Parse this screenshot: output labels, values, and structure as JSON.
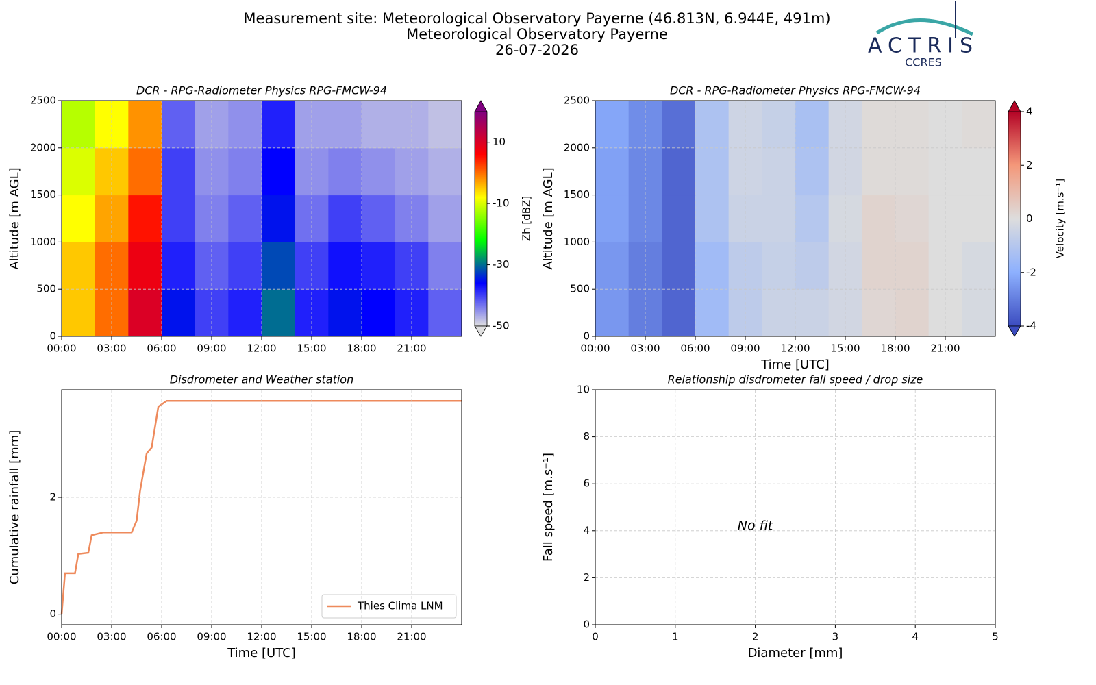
{
  "header": {
    "lines": [
      "Measurement site: Meteorological Observatory Payerne (46.813N, 6.944E, 491m)",
      "Meteorological Observatory Payerne",
      "26-07-2026"
    ],
    "logo": "ACTRIS",
    "logo_sub": "CCRES"
  },
  "chart_data": [
    {
      "type": "heatmap",
      "title": "DCR - RPG-Radiometer Physics RPG-FMCW-94",
      "ylabel": "Altitude [m AGL]",
      "colorbar_label": "Zh [dBZ]",
      "clim": [
        -50,
        20
      ],
      "cticks": [
        -50,
        -30,
        -10,
        10
      ],
      "colors": [
        "#e0e0e0",
        "#0000ff",
        "#00ff00",
        "#ffff00",
        "#ff0000",
        "#800080"
      ],
      "xlim": [
        0,
        24
      ],
      "xticks": [
        {
          "value": 0,
          "label": "00:00"
        },
        {
          "value": 3,
          "label": "03:00"
        },
        {
          "value": 6,
          "label": "06:00"
        },
        {
          "value": 9,
          "label": "09:00"
        },
        {
          "value": 12,
          "label": "12:00"
        },
        {
          "value": 15,
          "label": "15:00"
        },
        {
          "value": 18,
          "label": "18:00"
        },
        {
          "value": 21,
          "label": "21:00"
        }
      ],
      "ylim": [
        0,
        2500
      ],
      "yticks": [
        0,
        500,
        1000,
        1500,
        2000,
        2500
      ],
      "grid": true,
      "x_edges": [
        0,
        2,
        4,
        6,
        8,
        10,
        12,
        14,
        16,
        18,
        20,
        22,
        24
      ],
      "y_edges": [
        0,
        500,
        1000,
        1500,
        2000,
        2500
      ],
      "values": [
        [
          -5,
          0,
          10,
          -35,
          -40,
          -38,
          -30,
          -38,
          -35,
          -36,
          -38,
          -42
        ],
        [
          -5,
          0,
          8,
          -38,
          -42,
          -40,
          -32,
          -40,
          -37,
          -38,
          -40,
          -44
        ],
        [
          -8,
          -3,
          5,
          -40,
          -44,
          -42,
          -35,
          -43,
          -40,
          -42,
          -44,
          -46
        ],
        [
          -10,
          -5,
          0,
          -40,
          -45,
          -44,
          -36,
          -45,
          -44,
          -45,
          -46,
          -47
        ],
        [
          -12,
          -8,
          -2,
          -42,
          -46,
          -45,
          -38,
          -46,
          -46,
          -47,
          -47,
          -48
        ]
      ]
    },
    {
      "type": "heatmap",
      "title": "DCR - RPG-Radiometer Physics RPG-FMCW-94",
      "xlabel": "Time [UTC]",
      "ylabel": "Altitude [m AGL]",
      "colorbar_label": "Velocity [m.s⁻¹]",
      "clim": [
        -4,
        4
      ],
      "cticks": [
        -4,
        -2,
        0,
        2,
        4
      ],
      "colors": [
        "#3b4cc0",
        "#8db0fe",
        "#dddddd",
        "#f4987a",
        "#b40426"
      ],
      "xlim": [
        0,
        24
      ],
      "xticks": [
        {
          "value": 0,
          "label": "00:00"
        },
        {
          "value": 3,
          "label": "03:00"
        },
        {
          "value": 6,
          "label": "06:00"
        },
        {
          "value": 9,
          "label": "09:00"
        },
        {
          "value": 12,
          "label": "12:00"
        },
        {
          "value": 15,
          "label": "15:00"
        },
        {
          "value": 18,
          "label": "18:00"
        },
        {
          "value": 21,
          "label": "21:00"
        }
      ],
      "ylim": [
        0,
        2500
      ],
      "yticks": [
        0,
        500,
        1000,
        1500,
        2000,
        2500
      ],
      "grid": true,
      "x_edges": [
        0,
        2,
        4,
        6,
        8,
        10,
        12,
        14,
        16,
        18,
        20,
        22,
        24
      ],
      "y_edges": [
        0,
        500,
        1000,
        1500,
        2000,
        2500
      ],
      "values": [
        [
          -2.5,
          -3,
          -3.5,
          -1.5,
          -0.8,
          -0.5,
          -0.5,
          -0.3,
          0.2,
          0.3,
          0,
          -0.2
        ],
        [
          -2.5,
          -3,
          -3.5,
          -1.5,
          -0.8,
          -0.6,
          -0.8,
          -0.3,
          0.3,
          0.3,
          0,
          -0.2
        ],
        [
          -2.3,
          -2.8,
          -3.5,
          -1.2,
          -0.5,
          -0.5,
          -1,
          -0.2,
          0.3,
          0.2,
          0,
          0
        ],
        [
          -2.3,
          -2.8,
          -3.5,
          -1.2,
          -0.4,
          -0.5,
          -1.2,
          -0.3,
          0.1,
          0.1,
          0,
          0
        ],
        [
          -2.2,
          -2.7,
          -3.3,
          -1.2,
          -0.4,
          -0.6,
          -1.3,
          -0.3,
          0.1,
          0.1,
          0,
          0.1
        ]
      ]
    },
    {
      "type": "line",
      "title": "Disdrometer and Weather station",
      "xlabel": "Time [UTC]",
      "ylabel": "Cumulative rainfall [mm]",
      "xlim": [
        0,
        24
      ],
      "xticks": [
        {
          "value": 0,
          "label": "00:00"
        },
        {
          "value": 3,
          "label": "03:00"
        },
        {
          "value": 6,
          "label": "06:00"
        },
        {
          "value": 9,
          "label": "09:00"
        },
        {
          "value": 12,
          "label": "12:00"
        },
        {
          "value": 15,
          "label": "15:00"
        },
        {
          "value": 18,
          "label": "18:00"
        },
        {
          "value": 21,
          "label": "21:00"
        }
      ],
      "ylim": [
        -0.18,
        3.84
      ],
      "yticks": [
        0,
        2
      ],
      "grid": true,
      "legend": "lower right",
      "x": [
        0,
        0.2,
        0.8,
        1,
        1.6,
        1.8,
        2.5,
        4.2,
        4.5,
        4.7,
        5.1,
        5.4,
        5.8,
        6.3,
        24
      ],
      "series": [
        {
          "name": "Thies Clima LNM",
          "color": "#ee8a5c",
          "values": [
            0,
            0.7,
            0.7,
            1.03,
            1.05,
            1.35,
            1.4,
            1.4,
            1.6,
            2.1,
            2.75,
            2.85,
            3.55,
            3.65,
            3.65
          ]
        }
      ]
    },
    {
      "type": "scatter",
      "title": "Relationship disdrometer fall speed / drop size",
      "xlabel": "Diameter [mm]",
      "ylabel": "Fall speed [m.s⁻¹]",
      "annotation": "No fit",
      "xlim": [
        0,
        5
      ],
      "xticks": [
        0,
        1,
        2,
        3,
        4,
        5
      ],
      "ylim": [
        0,
        10
      ],
      "yticks": [
        0,
        2,
        4,
        6,
        8,
        10
      ],
      "grid": true
    }
  ]
}
